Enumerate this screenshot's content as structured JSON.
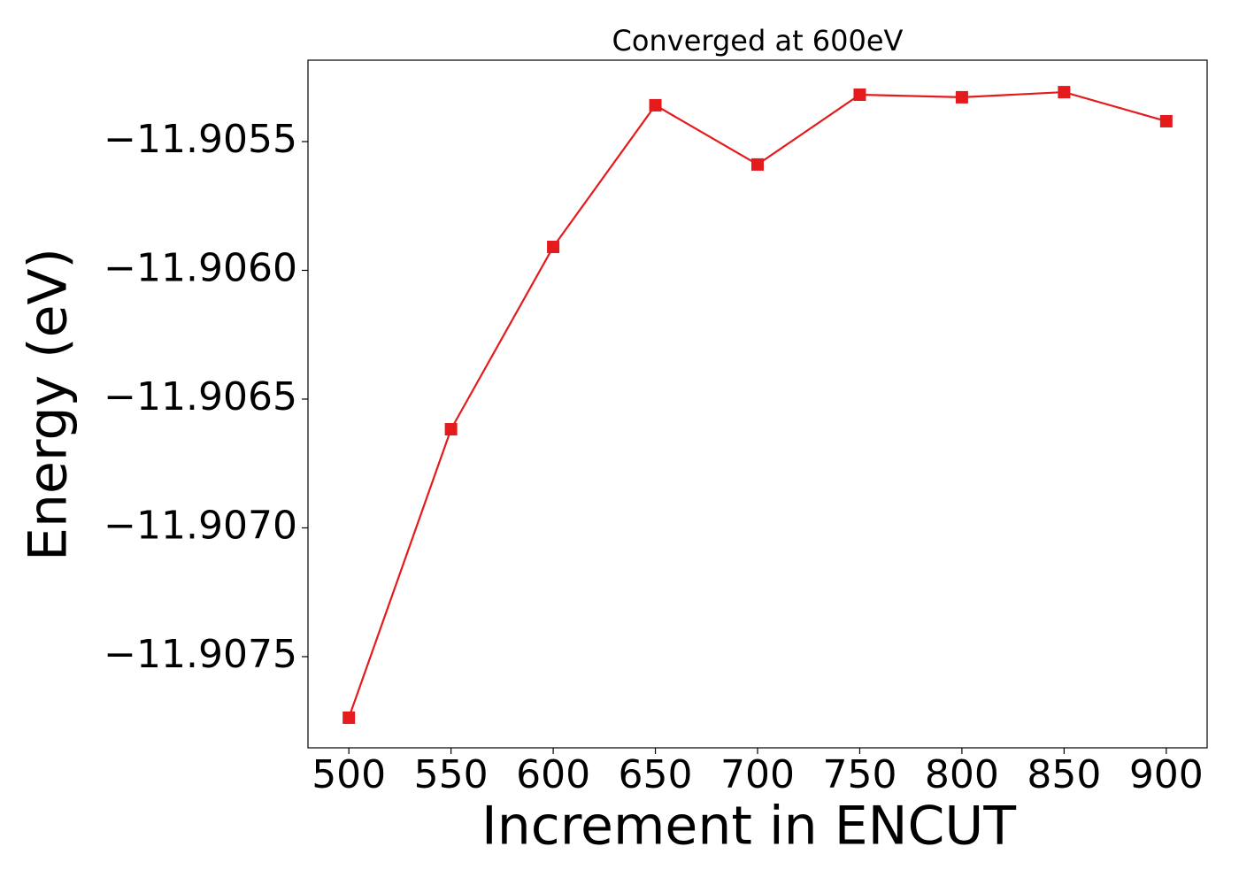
{
  "chart_data": {
    "type": "line",
    "title": "Converged at 600eV",
    "x_label": "Increment in ENCUT",
    "y_label": "Energy (eV)",
    "x": [
      500,
      550,
      600,
      650,
      700,
      750,
      800,
      850,
      900
    ],
    "series": [
      {
        "name": "Energy",
        "color": "#e41a1c",
        "marker": "square",
        "values": [
          -11.907737,
          -11.906617,
          -11.905909,
          -11.905359,
          -11.905589,
          -11.905318,
          -11.905328,
          -11.905308,
          -11.905421
        ]
      }
    ],
    "xlim": [
      480,
      920
    ],
    "ylim": [
      -11.907854,
      -11.905184
    ],
    "xticks": [
      500,
      550,
      600,
      650,
      700,
      750,
      800,
      850,
      900
    ],
    "yticks": [
      {
        "value": -11.9075,
        "label": "−11.9075"
      },
      {
        "value": -11.907,
        "label": "−11.9070"
      },
      {
        "value": -11.9065,
        "label": "−11.9065"
      },
      {
        "value": -11.906,
        "label": "−11.9060"
      },
      {
        "value": -11.9055,
        "label": "−11.9055"
      }
    ],
    "grid": false
  }
}
